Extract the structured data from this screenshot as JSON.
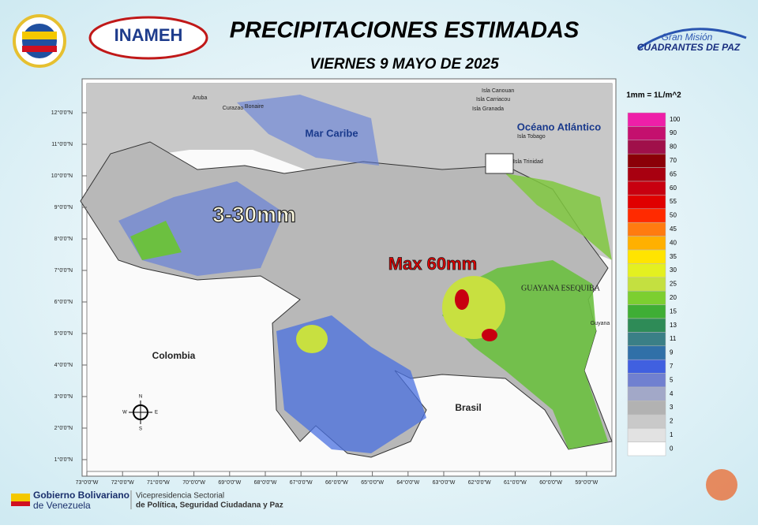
{
  "header": {
    "title": "PRECIPITACIONES ESTIMADAS",
    "subtitle": "VIERNES 9 MAYO DE 2025",
    "logo_left": "INAMEH",
    "logo_right_top": "Gran Misión",
    "logo_right_bottom": "CUADRANTES DE PAZ"
  },
  "map": {
    "labels": {
      "sea": "Mar Caribe",
      "ocean": "Océano Atlántico",
      "colombia": "Colombia",
      "brasil": "Brasil",
      "esequibo": "GUAYANA ESEQUIBA",
      "range": "3-30mm",
      "max": "Max 60mm",
      "aruba": "Aruba",
      "curazao": "Curazao",
      "bonaire": "Bonaire",
      "trinidad": "Isla Trinidad",
      "tobago": "Isla Tobago",
      "granada": "Isla Granada",
      "carriacou": "Isla Carriacou",
      "canouan": "Isla Canouan",
      "guyana": "Guyana"
    },
    "compass": [
      "N",
      "S",
      "E",
      "W"
    ],
    "lat_ticks": [
      "12°0'0\"N",
      "11°0'0\"N",
      "10°0'0\"N",
      "9°0'0\"N",
      "8°0'0\"N",
      "7°0'0\"N",
      "6°0'0\"N",
      "5°0'0\"N",
      "4°0'0\"N",
      "3°0'0\"N",
      "2°0'0\"N",
      "1°0'0\"N"
    ],
    "lon_ticks": [
      "73°0'0\"W",
      "72°0'0\"W",
      "71°0'0\"W",
      "70°0'0\"W",
      "69°0'0\"W",
      "68°0'0\"W",
      "67°0'0\"W",
      "66°0'0\"W",
      "65°0'0\"W",
      "64°0'0\"W",
      "63°0'0\"W",
      "62°0'0\"W",
      "61°0'0\"W",
      "60°0'0\"W",
      "59°0'0\"W"
    ]
  },
  "legend": {
    "title": "1mm = 1L/m^2",
    "levels": [
      {
        "value": 100,
        "color": "#ee1fa8"
      },
      {
        "value": 90,
        "color": "#c4106e"
      },
      {
        "value": 80,
        "color": "#a0104a"
      },
      {
        "value": 70,
        "color": "#8b0008"
      },
      {
        "value": 65,
        "color": "#a80010"
      },
      {
        "value": 60,
        "color": "#c80010"
      },
      {
        "value": 55,
        "color": "#e00000"
      },
      {
        "value": 50,
        "color": "#ff2a00"
      },
      {
        "value": 45,
        "color": "#ff7b10"
      },
      {
        "value": 40,
        "color": "#ffb000"
      },
      {
        "value": 35,
        "color": "#ffe400"
      },
      {
        "value": 30,
        "color": "#e4f020"
      },
      {
        "value": 25,
        "color": "#c4e040"
      },
      {
        "value": 20,
        "color": "#7ccf30"
      },
      {
        "value": 15,
        "color": "#3fae35"
      },
      {
        "value": 13,
        "color": "#2e8b57"
      },
      {
        "value": 11,
        "color": "#3a7f86"
      },
      {
        "value": 9,
        "color": "#3070a8"
      },
      {
        "value": 7,
        "color": "#4060e0"
      },
      {
        "value": 5,
        "color": "#7080d0"
      },
      {
        "value": 4,
        "color": "#a2a8c8"
      },
      {
        "value": 3,
        "color": "#b2b2b2"
      },
      {
        "value": 2,
        "color": "#c9c9c9"
      },
      {
        "value": 1,
        "color": "#e2e2e2"
      },
      {
        "value": 0,
        "color": "#ffffff"
      }
    ]
  },
  "footer": {
    "gov_top": "Gobierno Bolivariano",
    "gov_bottom": "de Venezuela",
    "vice_top": "Vicepresidencia Sectorial",
    "vice_bottom": "de Política, Seguridad Ciudadana y Paz"
  }
}
